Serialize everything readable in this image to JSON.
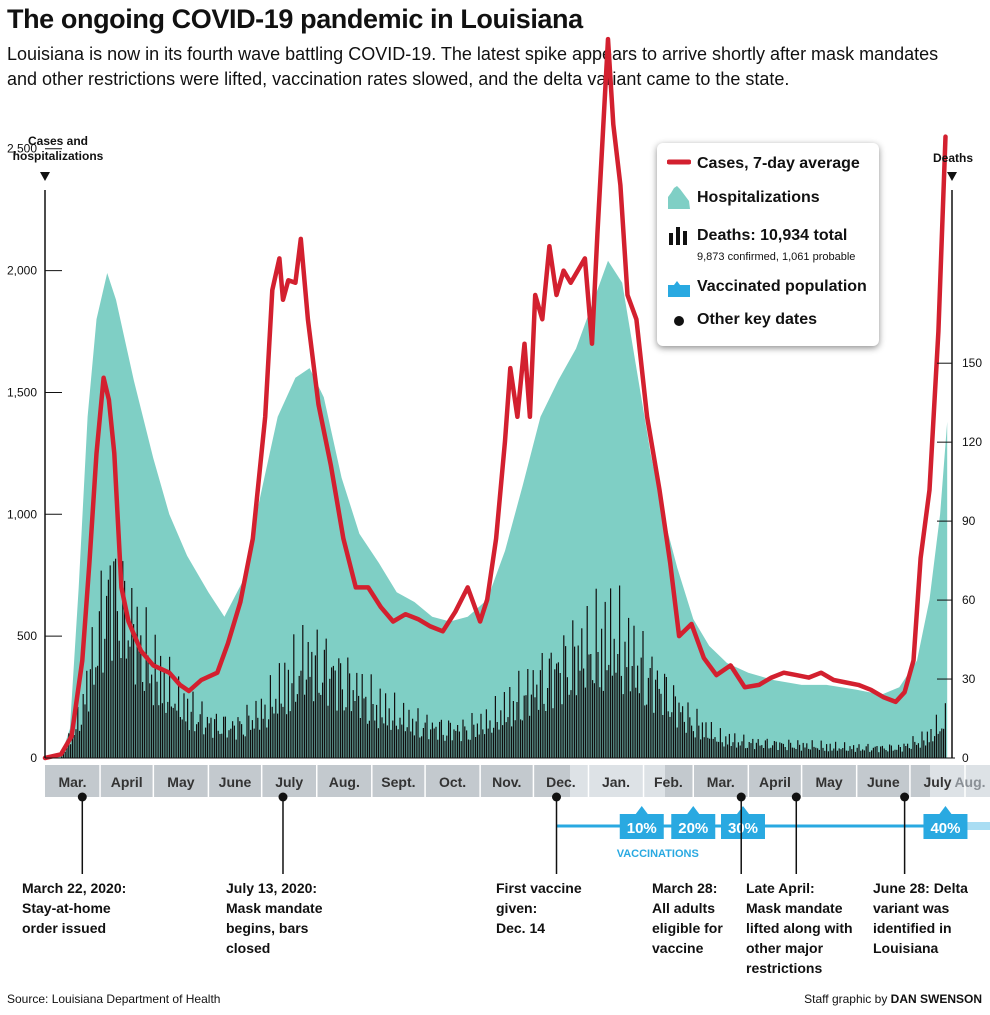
{
  "title": "The ongoing COVID-19 pandemic in Louisiana",
  "subtitle_line1": "Louisiana is now in its fourth wave battling COVID-19. The latest spike appears to arrive shortly after mask mandates",
  "subtitle_line2": "and other restrictions were lifted, vaccination rates slowed, and the delta variant came to the state.",
  "colors": {
    "cases": "#d3202f",
    "hospitalizations": "#7fcfc5",
    "deaths": "#111111",
    "vaccinated": "#29a9e1",
    "month_band": "#c3c9ce",
    "month_band_light": "#dde2e6"
  },
  "legend": {
    "cases": "Cases, 7-day average",
    "hospitalizations": "Hospitalizations",
    "deaths": "Deaths: 10,934 total",
    "deaths_detail": "9,873 confirmed, 1,061 probable",
    "vaccinated": "Vaccinated population",
    "key_dates": "Other key dates"
  },
  "left_axis_title_line1": "Cases and",
  "left_axis_title_line2": "hospitalizations",
  "right_axis_title": "Deaths",
  "vaccinations_label": "VACCINATIONS",
  "source": "Source: Louisiana Department of Health",
  "credit_prefix": "Staff graphic by ",
  "credit_name": "DAN SWENSON",
  "chart_data": {
    "type": "line",
    "title": "The ongoing COVID-19 pandemic in Louisiana",
    "x_range": [
      "2020-03-01",
      "2021-08-01"
    ],
    "months": [
      "Mar.",
      "April",
      "May",
      "June",
      "July",
      "Aug.",
      "Sept.",
      "Oct.",
      "Nov.",
      "Dec.",
      "Jan.",
      "Feb.",
      "Mar.",
      "April",
      "May",
      "June",
      "July",
      "Aug."
    ],
    "y_left": {
      "label": "Cases and hospitalizations",
      "range": [
        0,
        2700
      ],
      "ticks": [
        0,
        500,
        1000,
        1500,
        2000,
        2500
      ],
      "tick_labels": [
        "0",
        "500",
        "1,000",
        "1,500",
        "2,000",
        "2,500"
      ]
    },
    "y_right": {
      "label": "Deaths",
      "range": [
        0,
        250
      ],
      "ticks": [
        0,
        30,
        60,
        90,
        120,
        150
      ],
      "tick_labels": [
        "0",
        "30",
        "60",
        "90",
        "120",
        "150"
      ]
    },
    "series": [
      {
        "name": "Cases, 7-day average",
        "kind": "line",
        "points": [
          [
            "2020-03-01",
            0
          ],
          [
            "2020-03-10",
            15
          ],
          [
            "2020-03-16",
            90
          ],
          [
            "2020-03-22",
            400
          ],
          [
            "2020-03-26",
            800
          ],
          [
            "2020-03-30",
            1250
          ],
          [
            "2020-04-03",
            1560
          ],
          [
            "2020-04-06",
            1470
          ],
          [
            "2020-04-09",
            1250
          ],
          [
            "2020-04-13",
            700
          ],
          [
            "2020-04-17",
            560
          ],
          [
            "2020-04-24",
            440
          ],
          [
            "2020-05-01",
            380
          ],
          [
            "2020-05-10",
            350
          ],
          [
            "2020-05-16",
            300
          ],
          [
            "2020-05-21",
            275
          ],
          [
            "2020-05-28",
            320
          ],
          [
            "2020-06-06",
            350
          ],
          [
            "2020-06-12",
            470
          ],
          [
            "2020-06-19",
            640
          ],
          [
            "2020-06-26",
            900
          ],
          [
            "2020-07-03",
            1400
          ],
          [
            "2020-07-07",
            1920
          ],
          [
            "2020-07-11",
            2050
          ],
          [
            "2020-07-13",
            1880
          ],
          [
            "2020-07-16",
            1960
          ],
          [
            "2020-07-20",
            1950
          ],
          [
            "2020-07-23",
            2130
          ],
          [
            "2020-07-27",
            1800
          ],
          [
            "2020-08-02",
            1450
          ],
          [
            "2020-08-09",
            1200
          ],
          [
            "2020-08-16",
            900
          ],
          [
            "2020-08-23",
            700
          ],
          [
            "2020-08-30",
            700
          ],
          [
            "2020-09-06",
            620
          ],
          [
            "2020-09-13",
            560
          ],
          [
            "2020-09-20",
            590
          ],
          [
            "2020-09-27",
            570
          ],
          [
            "2020-10-04",
            540
          ],
          [
            "2020-10-11",
            520
          ],
          [
            "2020-10-18",
            600
          ],
          [
            "2020-10-25",
            700
          ],
          [
            "2020-11-01",
            560
          ],
          [
            "2020-11-05",
            650
          ],
          [
            "2020-11-10",
            900
          ],
          [
            "2020-11-15",
            1300
          ],
          [
            "2020-11-18",
            1600
          ],
          [
            "2020-11-22",
            1400
          ],
          [
            "2020-11-26",
            1700
          ],
          [
            "2020-11-29",
            1400
          ],
          [
            "2020-12-02",
            1900
          ],
          [
            "2020-12-06",
            1800
          ],
          [
            "2020-12-10",
            2100
          ],
          [
            "2020-12-14",
            1900
          ],
          [
            "2020-12-18",
            2000
          ],
          [
            "2020-12-22",
            1950
          ],
          [
            "2020-12-26",
            2000
          ],
          [
            "2020-12-30",
            2050
          ],
          [
            "2021-01-03",
            1700
          ],
          [
            "2021-01-06",
            2150
          ],
          [
            "2021-01-09",
            2550
          ],
          [
            "2021-01-12",
            2950
          ],
          [
            "2021-01-15",
            2600
          ],
          [
            "2021-01-19",
            2350
          ],
          [
            "2021-01-23",
            1900
          ],
          [
            "2021-01-28",
            1800
          ],
          [
            "2021-02-03",
            1400
          ],
          [
            "2021-02-10",
            1100
          ],
          [
            "2021-02-16",
            800
          ],
          [
            "2021-02-21",
            500
          ],
          [
            "2021-02-28",
            550
          ],
          [
            "2021-03-07",
            410
          ],
          [
            "2021-03-14",
            340
          ],
          [
            "2021-03-22",
            380
          ],
          [
            "2021-03-30",
            290
          ],
          [
            "2021-04-07",
            300
          ],
          [
            "2021-04-14",
            330
          ],
          [
            "2021-04-21",
            350
          ],
          [
            "2021-04-28",
            340
          ],
          [
            "2021-05-05",
            330
          ],
          [
            "2021-05-12",
            350
          ],
          [
            "2021-05-19",
            320
          ],
          [
            "2021-05-26",
            310
          ],
          [
            "2021-06-02",
            300
          ],
          [
            "2021-06-09",
            280
          ],
          [
            "2021-06-16",
            250
          ],
          [
            "2021-06-23",
            230
          ],
          [
            "2021-06-28",
            270
          ],
          [
            "2021-07-03",
            400
          ],
          [
            "2021-07-07",
            820
          ],
          [
            "2021-07-12",
            1100
          ],
          [
            "2021-07-17",
            1750
          ],
          [
            "2021-07-21",
            2550
          ]
        ]
      },
      {
        "name": "Hospitalizations",
        "kind": "area",
        "points": [
          [
            "2020-03-01",
            0
          ],
          [
            "2020-03-10",
            10
          ],
          [
            "2020-03-15",
            120
          ],
          [
            "2020-03-20",
            700
          ],
          [
            "2020-03-25",
            1400
          ],
          [
            "2020-03-30",
            1800
          ],
          [
            "2020-04-05",
            1990
          ],
          [
            "2020-04-10",
            1880
          ],
          [
            "2020-04-20",
            1550
          ],
          [
            "2020-05-01",
            1230
          ],
          [
            "2020-05-10",
            1000
          ],
          [
            "2020-05-20",
            830
          ],
          [
            "2020-06-01",
            680
          ],
          [
            "2020-06-10",
            580
          ],
          [
            "2020-06-20",
            720
          ],
          [
            "2020-07-01",
            1100
          ],
          [
            "2020-07-10",
            1400
          ],
          [
            "2020-07-20",
            1560
          ],
          [
            "2020-07-28",
            1600
          ],
          [
            "2020-08-05",
            1480
          ],
          [
            "2020-08-15",
            1150
          ],
          [
            "2020-08-25",
            920
          ],
          [
            "2020-09-05",
            800
          ],
          [
            "2020-09-15",
            680
          ],
          [
            "2020-09-25",
            640
          ],
          [
            "2020-10-05",
            580
          ],
          [
            "2020-10-15",
            560
          ],
          [
            "2020-10-25",
            580
          ],
          [
            "2020-11-05",
            650
          ],
          [
            "2020-11-15",
            850
          ],
          [
            "2020-11-25",
            1120
          ],
          [
            "2020-12-05",
            1400
          ],
          [
            "2020-12-15",
            1550
          ],
          [
            "2020-12-25",
            1680
          ],
          [
            "2021-01-05",
            1900
          ],
          [
            "2021-01-12",
            2040
          ],
          [
            "2021-01-20",
            1950
          ],
          [
            "2021-01-28",
            1600
          ],
          [
            "2021-02-05",
            1250
          ],
          [
            "2021-02-12",
            1000
          ],
          [
            "2021-02-20",
            780
          ],
          [
            "2021-03-01",
            570
          ],
          [
            "2021-03-10",
            460
          ],
          [
            "2021-03-20",
            390
          ],
          [
            "2021-04-01",
            350
          ],
          [
            "2021-04-15",
            320
          ],
          [
            "2021-05-01",
            300
          ],
          [
            "2021-05-15",
            300
          ],
          [
            "2021-06-01",
            280
          ],
          [
            "2021-06-15",
            260
          ],
          [
            "2021-06-25",
            290
          ],
          [
            "2021-07-05",
            400
          ],
          [
            "2021-07-12",
            650
          ],
          [
            "2021-07-18",
            1000
          ],
          [
            "2021-07-22",
            1380
          ]
        ]
      },
      {
        "name": "Deaths",
        "kind": "bar",
        "points": [
          [
            "2020-03-10",
            1
          ],
          [
            "2020-03-20",
            15
          ],
          [
            "2020-03-28",
            40
          ],
          [
            "2020-04-04",
            62
          ],
          [
            "2020-04-08",
            68
          ],
          [
            "2020-04-12",
            60
          ],
          [
            "2020-04-20",
            50
          ],
          [
            "2020-05-01",
            35
          ],
          [
            "2020-05-15",
            22
          ],
          [
            "2020-06-01",
            14
          ],
          [
            "2020-06-15",
            12
          ],
          [
            "2020-07-01",
            18
          ],
          [
            "2020-07-15",
            30
          ],
          [
            "2020-07-25",
            38
          ],
          [
            "2020-08-05",
            36
          ],
          [
            "2020-08-20",
            28
          ],
          [
            "2020-09-05",
            20
          ],
          [
            "2020-09-20",
            15
          ],
          [
            "2020-10-05",
            12
          ],
          [
            "2020-10-20",
            11
          ],
          [
            "2020-11-05",
            14
          ],
          [
            "2020-11-20",
            22
          ],
          [
            "2020-12-05",
            30
          ],
          [
            "2020-12-20",
            38
          ],
          [
            "2021-01-05",
            45
          ],
          [
            "2021-01-15",
            48
          ],
          [
            "2021-01-25",
            40
          ],
          [
            "2021-02-10",
            28
          ],
          [
            "2021-02-25",
            16
          ],
          [
            "2021-03-15",
            8
          ],
          [
            "2021-04-01",
            6
          ],
          [
            "2021-05-01",
            5
          ],
          [
            "2021-06-01",
            4
          ],
          [
            "2021-06-25",
            4
          ],
          [
            "2021-07-10",
            8
          ],
          [
            "2021-07-21",
            15
          ]
        ]
      }
    ],
    "vaccination_marks": [
      [
        "2021-01-31",
        "10%"
      ],
      [
        "2021-03-01",
        "20%"
      ],
      [
        "2021-03-29",
        "30%"
      ],
      [
        "2021-07-21",
        "40%"
      ]
    ],
    "key_dates": [
      {
        "date": "2020-03-22",
        "line1": "March 22, 2020:",
        "line2": "Stay-at-home",
        "line3": "order issued",
        "line4": "",
        "line5": ""
      },
      {
        "date": "2020-07-13",
        "line1": "July 13, 2020:",
        "line2": "Mask mandate",
        "line3": "begins, bars",
        "line4": "closed",
        "line5": ""
      },
      {
        "date": "2020-12-14",
        "line1": "First vaccine",
        "line2": "given:",
        "line3": "Dec. 14",
        "line4": "",
        "line5": ""
      },
      {
        "date": "2021-03-28",
        "line1": "March 28:",
        "line2": "All adults",
        "line3": "eligible for",
        "line4": "vaccine",
        "line5": ""
      },
      {
        "date": "2021-04-28",
        "line1": "Late April:",
        "line2": "Mask mandate",
        "line3": "lifted along with",
        "line4": "other major",
        "line5": "restrictions"
      },
      {
        "date": "2021-06-28",
        "line1": "June 28: Delta",
        "line2": "variant was",
        "line3": "identified in",
        "line4": "Louisiana",
        "line5": ""
      }
    ]
  }
}
